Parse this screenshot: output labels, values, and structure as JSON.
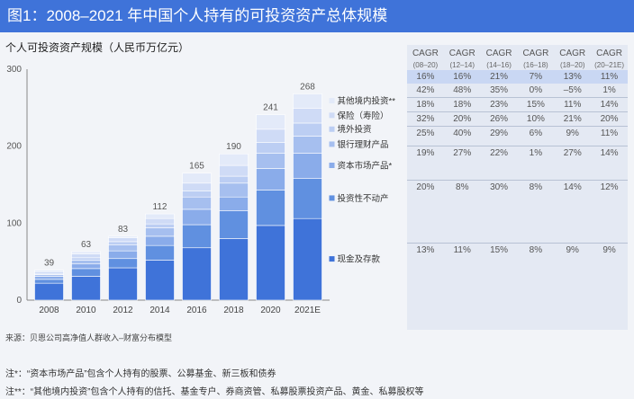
{
  "title": "图1：2008–2021 年中国个人持有的可投资资产总体规模",
  "subtitle": "个人可投资资产规模（人民币万亿元）",
  "cagr": {
    "headers": [
      "CAGR",
      "CAGR",
      "CAGR",
      "CAGR",
      "CAGR",
      "CAGR"
    ],
    "periods": [
      "(08–20)",
      "(12–14)",
      "(14–16)",
      "(16–18)",
      "(18–20)",
      "(20–21E)"
    ],
    "rows": [
      [
        "16%",
        "16%",
        "21%",
        "7%",
        "13%",
        "11%"
      ],
      [
        "42%",
        "48%",
        "35%",
        "0%",
        "–5%",
        "1%"
      ],
      [
        "18%",
        "18%",
        "23%",
        "15%",
        "11%",
        "14%"
      ],
      [
        "32%",
        "20%",
        "26%",
        "10%",
        "21%",
        "20%"
      ],
      [
        "25%",
        "40%",
        "29%",
        "6%",
        "9%",
        "11%"
      ],
      [
        "19%",
        "27%",
        "22%",
        "1%",
        "27%",
        "14%"
      ],
      [
        "20%",
        "8%",
        "30%",
        "8%",
        "14%",
        "12%"
      ],
      [
        "13%",
        "11%",
        "15%",
        "8%",
        "9%",
        "9%"
      ]
    ]
  },
  "source": "来源：贝恩公司高净值人群收入–财富分布模型",
  "notes": [
    "注*：“资本市场产品”包含个人持有的股票、公募基金、新三板和债券",
    "注**：“其他境内投资”包含个人持有的信托、基金专户、券商资管、私募股票投资产品、黄金、私募股权等"
  ],
  "chart_data": {
    "type": "bar",
    "stacked": true,
    "title": "个人可投资资产规模（人民币万亿元）",
    "categories": [
      "2008",
      "2010",
      "2012",
      "2014",
      "2016",
      "2018",
      "2020",
      "2021E"
    ],
    "totals": [
      39,
      63,
      83,
      112,
      165,
      190,
      241,
      268
    ],
    "ylim": [
      0,
      300
    ],
    "yticks": [
      0,
      100,
      200,
      300
    ],
    "series": [
      {
        "name": "现金及存款",
        "color": "#3f73d9",
        "values": [
          22,
          31,
          42,
          52,
          68,
          80,
          97,
          106
        ]
      },
      {
        "name": "投资性不动产",
        "color": "#6090e0",
        "values": [
          5,
          10,
          12,
          19,
          30,
          36,
          46,
          52
        ]
      },
      {
        "name": "资本市场产品*",
        "color": "#8aacea",
        "values": [
          4,
          6,
          10,
          12,
          20,
          18,
          28,
          33
        ]
      },
      {
        "name": "银行理财产品",
        "color": "#a6bfef",
        "values": [
          2,
          5,
          8,
          11,
          16,
          18,
          20,
          22
        ]
      },
      {
        "name": "境外投资",
        "color": "#bccef3",
        "values": [
          1,
          3,
          4,
          5,
          8,
          9,
          14,
          17
        ]
      },
      {
        "name": "保险（寿险）",
        "color": "#cfdbf6",
        "values": [
          3,
          5,
          5,
          7,
          10,
          14,
          17,
          19
        ]
      },
      {
        "name": "其他境内投资**",
        "color": "#e3eaf9",
        "values": [
          2,
          3,
          2,
          6,
          13,
          15,
          19,
          19
        ]
      }
    ],
    "legend": [
      "其他境内投资**",
      "保险（寿险）",
      "境外投资",
      "银行理财产品",
      "资本市场产品*",
      "投资性不动产",
      "现金及存款"
    ]
  }
}
